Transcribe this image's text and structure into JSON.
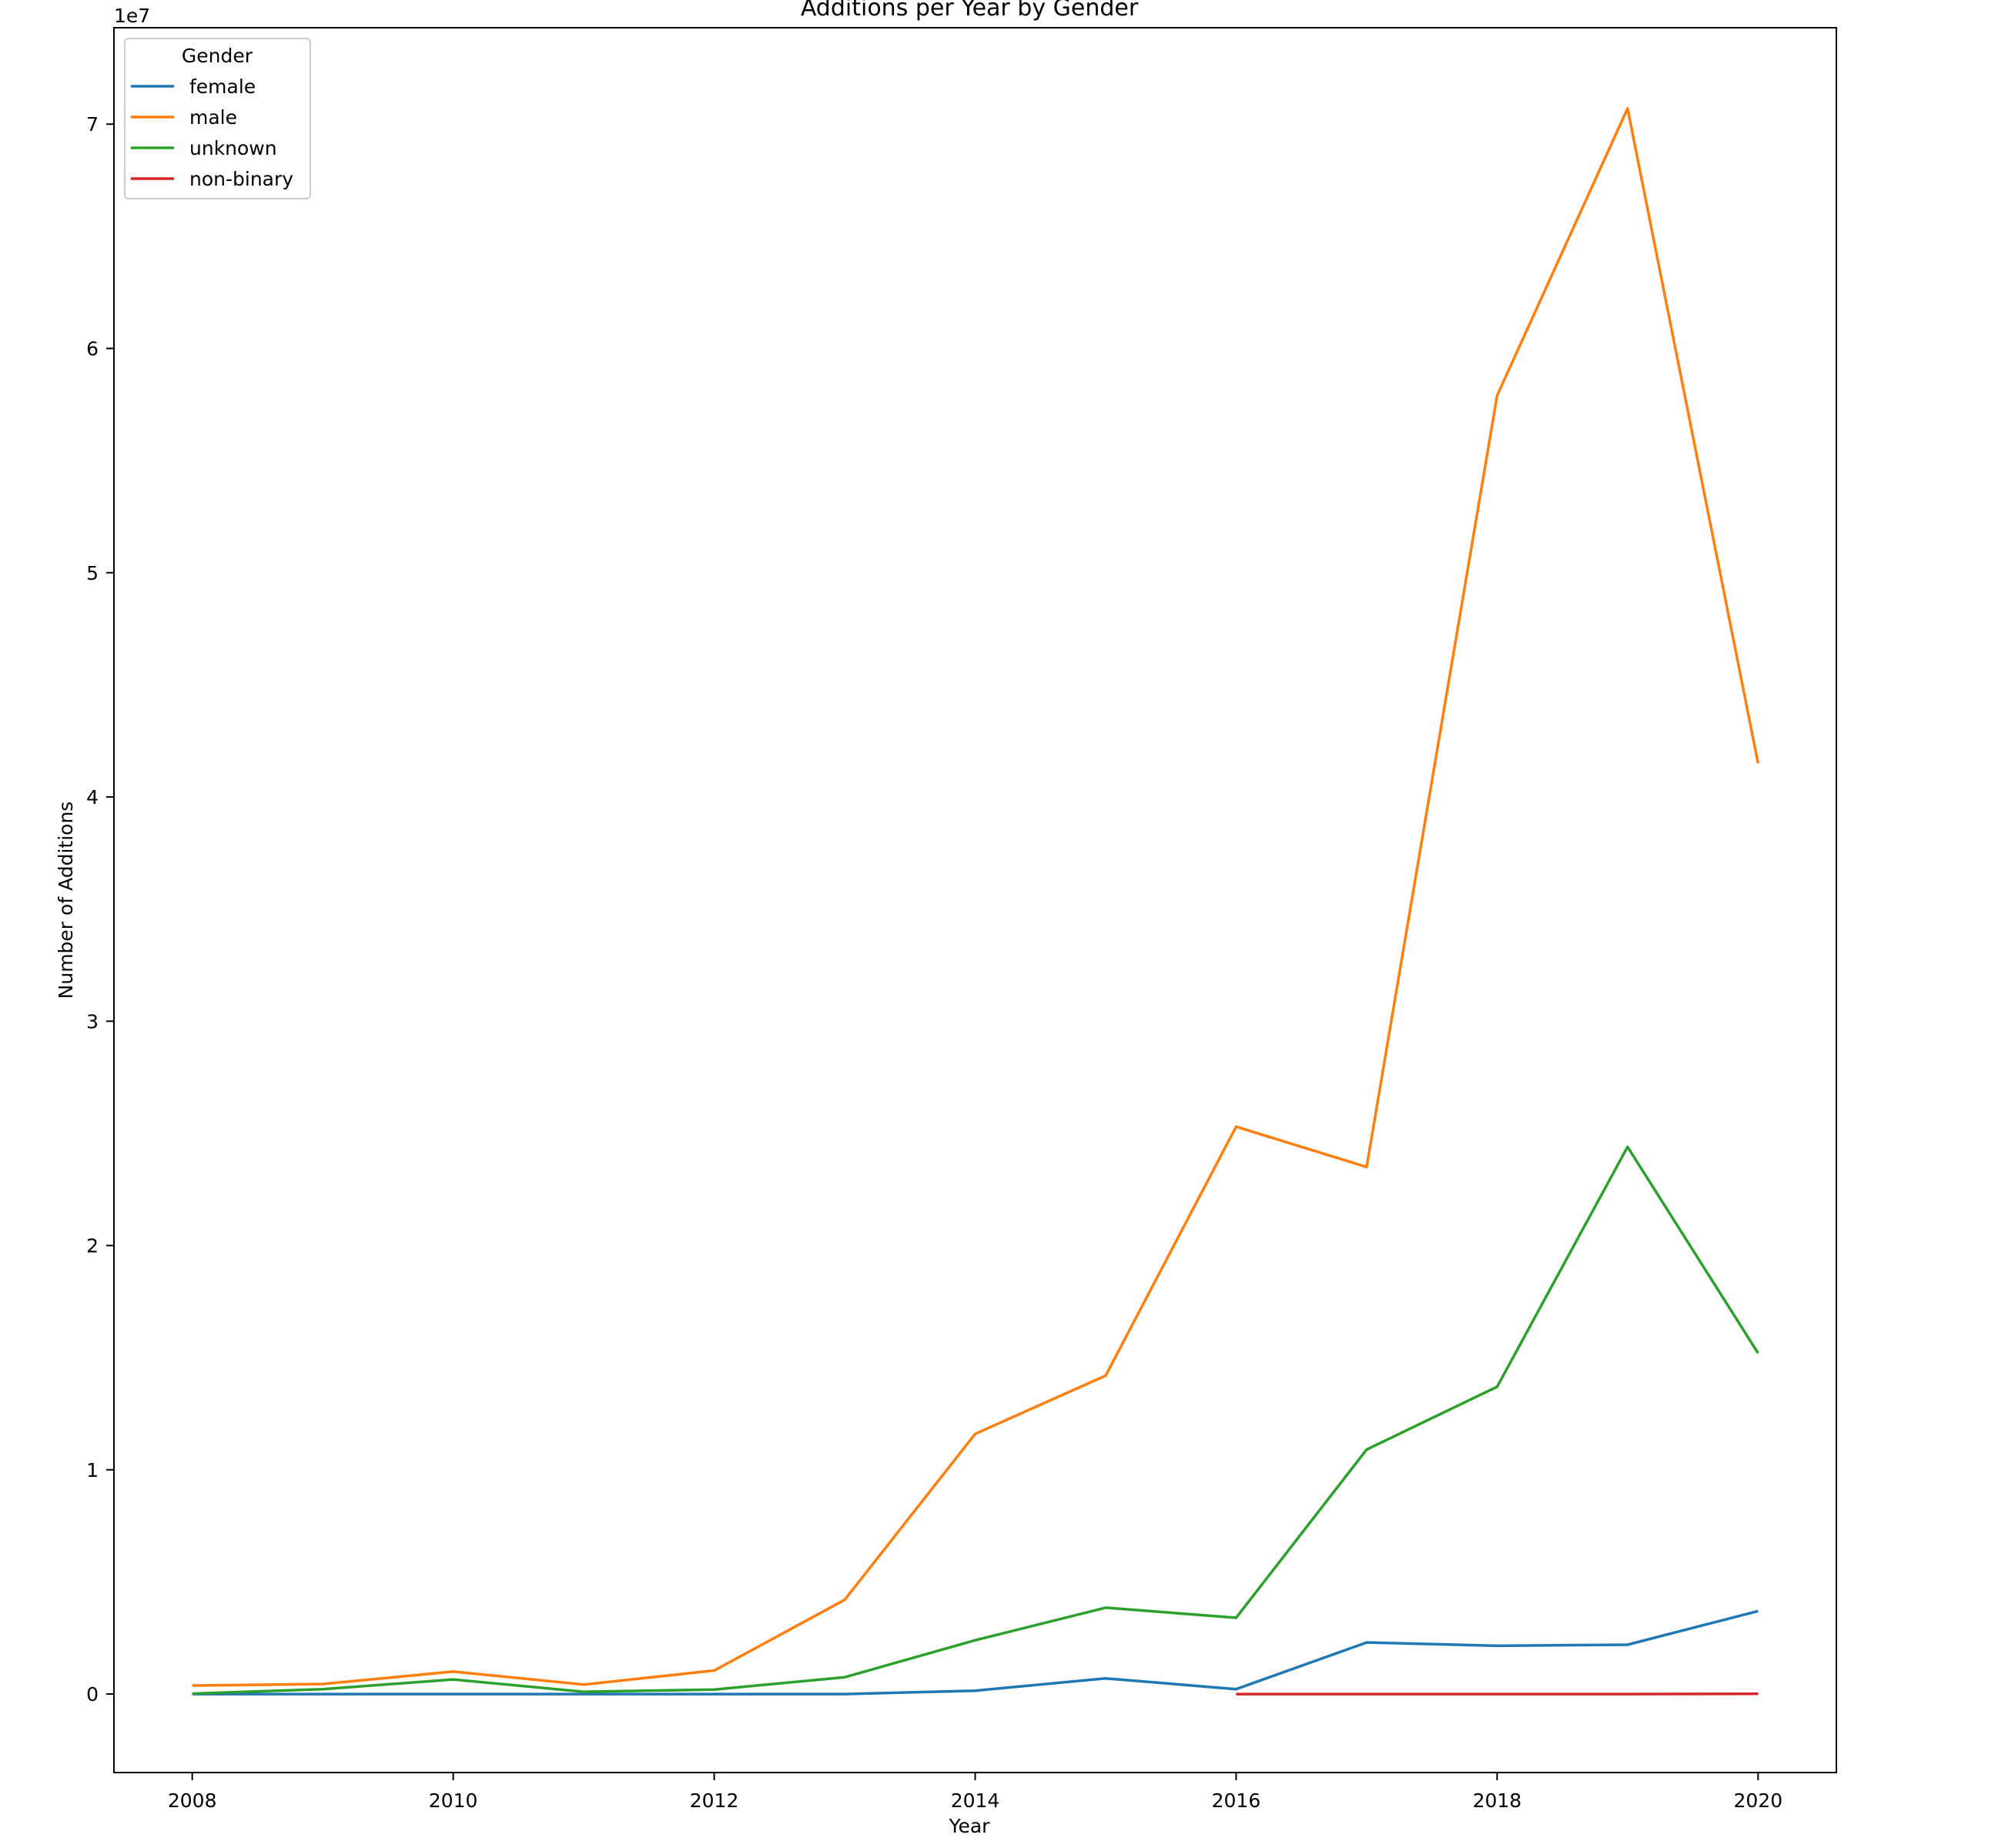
{
  "chart_data": {
    "type": "line",
    "title": "Additions per Year by Gender",
    "xlabel": "Year",
    "ylabel": "Number of Additions",
    "y_offset_label": "1e7",
    "xlim": [
      2007.4,
      2020.6
    ],
    "ylim": [
      -3500000,
      74300000
    ],
    "x_ticks": [
      2008,
      2010,
      2012,
      2014,
      2016,
      2018,
      2020
    ],
    "x_tick_labels": [
      "2008",
      "2010",
      "2012",
      "2014",
      "2016",
      "2018",
      "2020"
    ],
    "y_ticks": [
      0,
      10000000,
      20000000,
      30000000,
      40000000,
      50000000,
      60000000,
      70000000
    ],
    "y_tick_labels": [
      "0",
      "1",
      "2",
      "3",
      "4",
      "5",
      "6",
      "7"
    ],
    "grid": false,
    "legend": {
      "title": "Gender",
      "placement": "top-left"
    },
    "series": [
      {
        "name": "female",
        "color": "#1f77b4",
        "x": [
          2008,
          2009,
          2010,
          2011,
          2012,
          2013,
          2014,
          2015,
          2016,
          2017,
          2018,
          2019,
          2020
        ],
        "values": [
          0,
          0,
          0,
          0,
          0,
          0,
          150000,
          700000,
          220000,
          2300000,
          2150000,
          2200000,
          3700000
        ]
      },
      {
        "name": "male",
        "color": "#ff7f0e",
        "x": [
          2008,
          2009,
          2010,
          2011,
          2012,
          2013,
          2014,
          2015,
          2016,
          2017,
          2018,
          2019,
          2020
        ],
        "values": [
          380000,
          450000,
          1000000,
          420000,
          1050000,
          4200000,
          11600000,
          14200000,
          25300000,
          23500000,
          57900000,
          70700000,
          41500000
        ]
      },
      {
        "name": "unknown",
        "color": "#2ca02c",
        "x": [
          2008,
          2009,
          2010,
          2011,
          2012,
          2013,
          2014,
          2015,
          2016,
          2017,
          2018,
          2019,
          2020
        ],
        "values": [
          20000,
          220000,
          650000,
          100000,
          200000,
          750000,
          2400000,
          3850000,
          3400000,
          10900000,
          13700000,
          24400000,
          15200000
        ]
      },
      {
        "name": "non-binary",
        "color": "#d62728",
        "x": [
          2016,
          2017,
          2018,
          2019,
          2020
        ],
        "values": [
          0,
          0,
          0,
          0,
          10000
        ]
      }
    ]
  }
}
